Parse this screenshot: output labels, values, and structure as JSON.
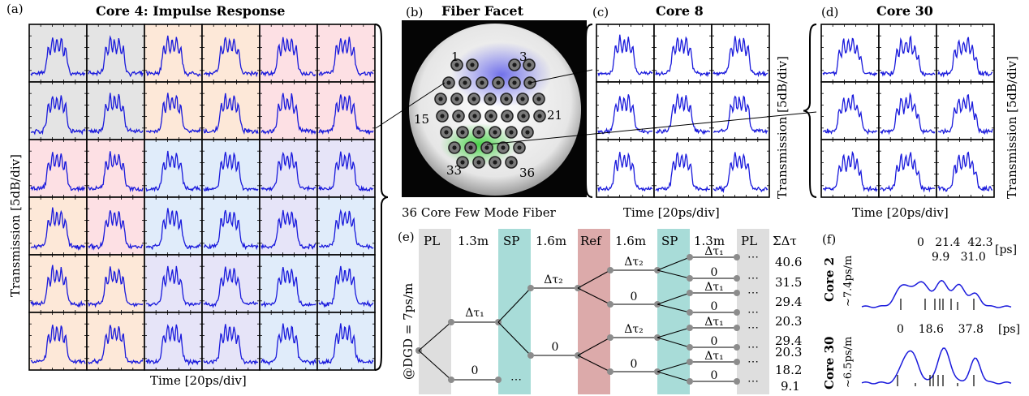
{
  "panels": {
    "a": {
      "letter": "(a)",
      "title": "Core 4: Impulse Response",
      "ylabel": "Transmission [5dB/div]",
      "xlabel": "Time [20ps/div]",
      "tints": [
        [
          "#e4e4e4",
          "#e4e4e4",
          "#fde8d8",
          "#fde8d8",
          "#fde0e4",
          "#fde0e4"
        ],
        [
          "#e4e4e4",
          "#e4e4e4",
          "#fde8d8",
          "#fde8d8",
          "#fde0e4",
          "#fde0e4"
        ],
        [
          "#fde0e4",
          "#fde0e4",
          "#e0ecfa",
          "#e0ecfa",
          "#e6e4f8",
          "#e6e4f8"
        ],
        [
          "#fde8d8",
          "#fde0e4",
          "#e0ecfa",
          "#e0ecfa",
          "#e6e4f8",
          "#e0ecfa"
        ],
        [
          "#fde8d8",
          "#fde8d8",
          "#e6e4f8",
          "#e6e4f8",
          "#e0ecfa",
          "#e0ecfa"
        ],
        [
          "#fde8d8",
          "#fde8d8",
          "#e6e4f8",
          "#e6e4f8",
          "#e0ecfa",
          "#e0ecfa"
        ]
      ]
    },
    "b": {
      "letter": "(b)",
      "title": "Fiber Facet",
      "caption": "36 Core Few Mode Fiber",
      "core_labels": [
        "1",
        "3",
        "15",
        "21",
        "33",
        "36"
      ]
    },
    "c": {
      "letter": "(c)",
      "title": "Core 8",
      "ylabel": "Transmission [5dB/div]",
      "xlabel": "Time [20ps/div]"
    },
    "d": {
      "letter": "(d)",
      "title": "Core 30",
      "ylabel": "Transmission [5dB/div]",
      "xlabel": "Time [20ps/div]"
    },
    "e": {
      "letter": "(e)",
      "dgd_label": "@DGD = 7ps/m",
      "column_labels": [
        "PL",
        "1.3m",
        "SP",
        "1.6m",
        "Ref",
        "1.6m",
        "SP",
        "1.3m",
        "PL"
      ],
      "sum_header": "ΣΔτ",
      "sums": [
        "40.6",
        "31.5",
        "29.4",
        "20.3",
        "29.4",
        "20.3",
        "18.2",
        "9.1"
      ],
      "branch_labels": {
        "dt1": "Δτ₁",
        "dt2": "Δτ₂",
        "zero": "0",
        "dots": "⋯"
      },
      "colors": {
        "pl": "#dedede",
        "sp": "#a8dcd8",
        "ref": "#dcaaaa",
        "node": "#8c8c8c"
      }
    },
    "f": {
      "letter": "(f)",
      "core2": {
        "label": "Core 2",
        "dgd": "~7.4ps/m",
        "delays_top": "0   21.4  42.3",
        "delays_bottom": "9.9   31.0",
        "unit": "[ps]"
      },
      "core30": {
        "label": "Core 30",
        "dgd": "~6.5ps/m",
        "delays": "0    18.6    37.8",
        "unit": "[ps]"
      }
    }
  }
}
